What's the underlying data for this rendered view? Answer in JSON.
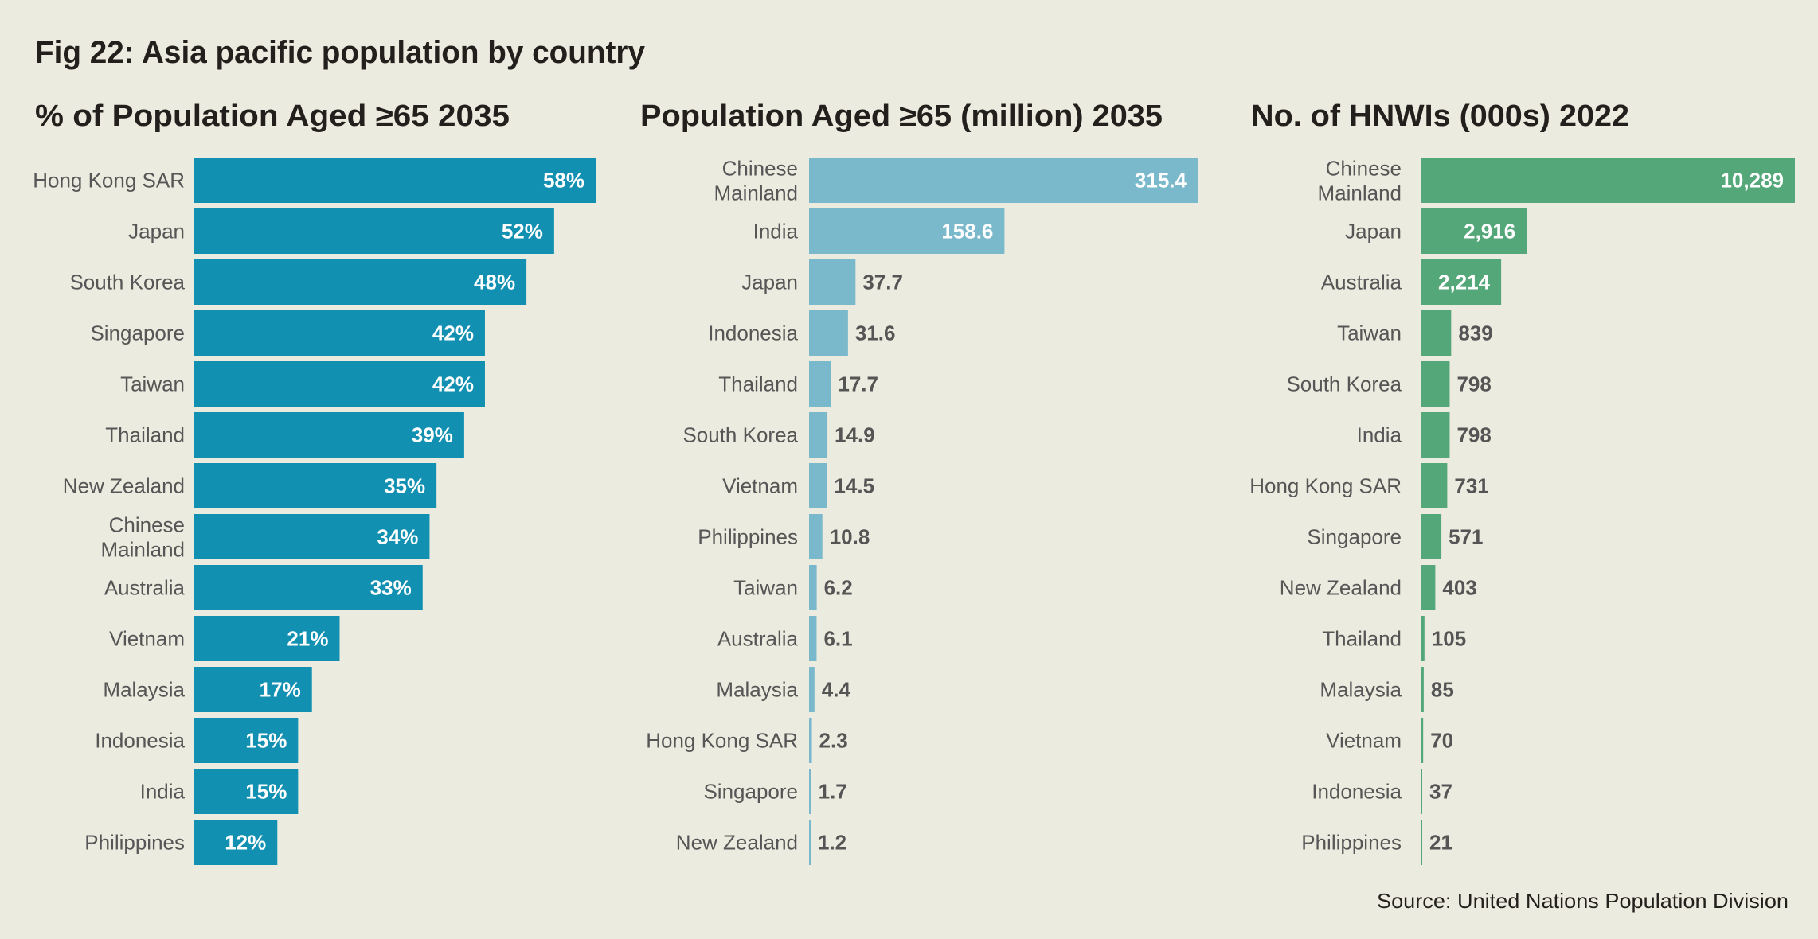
{
  "title": "Fig 22: Asia pacific population by country",
  "source": "Source: United Nations Population Division",
  "chart_data": [
    {
      "type": "bar",
      "orientation": "horizontal",
      "title": "% of Population Aged ≥65 2035",
      "color": "#1190b1",
      "categories": [
        [
          "Hong Kong SAR"
        ],
        [
          "Japan"
        ],
        [
          "South Korea"
        ],
        [
          "Singapore"
        ],
        [
          "Taiwan"
        ],
        [
          "Thailand"
        ],
        [
          "New Zealand"
        ],
        [
          "Chinese",
          "Mainland"
        ],
        [
          "Australia"
        ],
        [
          "Vietnam"
        ],
        [
          "Malaysia"
        ],
        [
          "Indonesia"
        ],
        [
          "India"
        ],
        [
          "Philippines"
        ]
      ],
      "values": [
        58,
        52,
        48,
        42,
        42,
        39,
        35,
        34,
        33,
        21,
        17,
        15,
        15,
        12
      ],
      "labels": [
        "58%",
        "52%",
        "48%",
        "42%",
        "42%",
        "39%",
        "35%",
        "34%",
        "33%",
        "21%",
        "17%",
        "15%",
        "15%",
        "12%"
      ],
      "xlim": [
        0,
        58
      ]
    },
    {
      "type": "bar",
      "orientation": "horizontal",
      "title": "Population Aged ≥65 (million) 2035",
      "color": "#7ab8cc",
      "categories": [
        [
          "Chinese",
          "Mainland"
        ],
        [
          "India"
        ],
        [
          "Japan"
        ],
        [
          "Indonesia"
        ],
        [
          "Thailand"
        ],
        [
          "South Korea"
        ],
        [
          "Vietnam"
        ],
        [
          "Philippines"
        ],
        [
          "Taiwan"
        ],
        [
          "Australia"
        ],
        [
          "Malaysia"
        ],
        [
          "Hong Kong SAR"
        ],
        [
          "Singapore"
        ],
        [
          "New Zealand"
        ]
      ],
      "values": [
        315.4,
        158.6,
        37.7,
        31.6,
        17.7,
        14.9,
        14.5,
        10.8,
        6.2,
        6.1,
        4.4,
        2.3,
        1.7,
        1.2
      ],
      "labels": [
        "315.4",
        "158.6",
        "37.7",
        "31.6",
        "17.7",
        "14.9",
        "14.5",
        "10.8",
        "6.2",
        "6.1",
        "4.4",
        "2.3",
        "1.7",
        "1.2"
      ],
      "xlim": [
        0,
        315.4
      ]
    },
    {
      "type": "bar",
      "orientation": "horizontal",
      "title": "No. of HNWIs (000s) 2022",
      "color": "#53a778",
      "categories": [
        [
          "Chinese",
          "Mainland"
        ],
        [
          "Japan"
        ],
        [
          "Australia"
        ],
        [
          "Taiwan"
        ],
        [
          "South Korea"
        ],
        [
          "India"
        ],
        [
          "Hong Kong SAR"
        ],
        [
          "Singapore"
        ],
        [
          "New Zealand"
        ],
        [
          "Thailand"
        ],
        [
          "Malaysia"
        ],
        [
          "Vietnam"
        ],
        [
          "Indonesia"
        ],
        [
          "Philippines"
        ]
      ],
      "values": [
        10289,
        2916,
        2214,
        839,
        798,
        798,
        731,
        571,
        403,
        105,
        85,
        70,
        37,
        21
      ],
      "labels": [
        "10,289",
        "2,916",
        "2,214",
        "839",
        "798",
        "798",
        "731",
        "571",
        "403",
        "105",
        "85",
        "70",
        "37",
        "21"
      ],
      "xlim": [
        0,
        10289
      ]
    }
  ]
}
